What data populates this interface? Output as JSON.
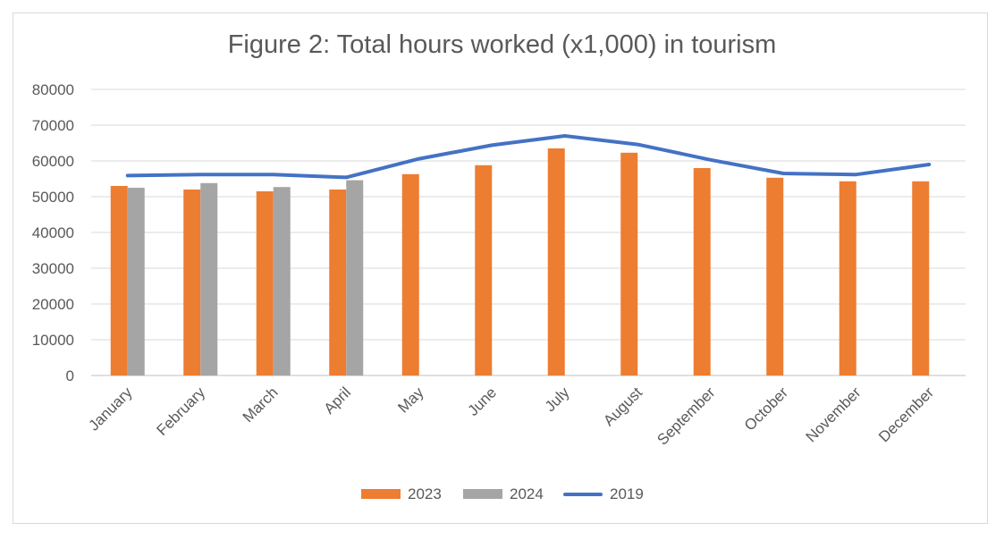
{
  "chart_data": {
    "type": "bar",
    "title": "Figure 2: Total hours worked (x1,000) in tourism",
    "xlabel": "",
    "ylabel": "",
    "ylim": [
      0,
      80000
    ],
    "yticks": [
      0,
      10000,
      20000,
      30000,
      40000,
      50000,
      60000,
      70000,
      80000
    ],
    "grid": true,
    "legend_position": "bottom",
    "categories": [
      "January",
      "February",
      "March",
      "April",
      "May",
      "June",
      "July",
      "August",
      "September",
      "October",
      "November",
      "December"
    ],
    "series": [
      {
        "name": "2023",
        "type": "bar",
        "color": "#ED7D31",
        "values": [
          53000,
          52000,
          51500,
          52000,
          56300,
          58800,
          63500,
          62300,
          58000,
          55300,
          54300,
          54300
        ]
      },
      {
        "name": "2024",
        "type": "bar",
        "color": "#A5A5A5",
        "values": [
          52500,
          53800,
          52700,
          54600,
          null,
          null,
          null,
          null,
          null,
          null,
          null,
          null
        ]
      },
      {
        "name": "2019",
        "type": "line",
        "color": "#4472C4",
        "values": [
          55900,
          56200,
          56200,
          55400,
          60600,
          64400,
          67000,
          64600,
          60300,
          56500,
          56200,
          59000
        ]
      }
    ]
  }
}
